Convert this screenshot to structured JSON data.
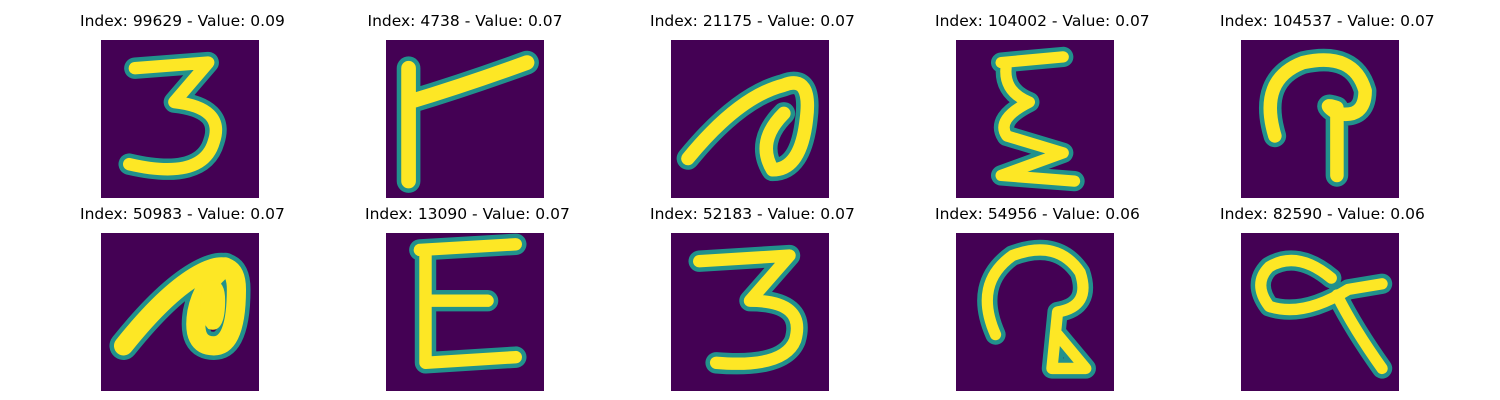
{
  "colors": {
    "background": "#440154",
    "glyph_core": "#fde725",
    "glyph_edge": "#21918c"
  },
  "grid": [
    {
      "title": "Index: 99629 - Value: 0.09",
      "glyph": "3"
    },
    {
      "title": "Index: 4738 - Value: 0.07",
      "glyph": "flag"
    },
    {
      "title": "Index: 21175 - Value: 0.07",
      "glyph": "hook"
    },
    {
      "title": "Index: 104002 - Value: 0.07",
      "glyph": "xi"
    },
    {
      "title": "Index: 104537 - Value: 0.07",
      "glyph": "loop"
    },
    {
      "title": "Index: 50983 - Value: 0.07",
      "glyph": "blob"
    },
    {
      "title": "Index: 13090 - Value: 0.07",
      "glyph": "E"
    },
    {
      "title": "Index: 52183 - Value: 0.07",
      "glyph": "3"
    },
    {
      "title": "Index: 54956 - Value: 0.06",
      "glyph": "loop2"
    },
    {
      "title": "Index: 82590 - Value: 0.06",
      "glyph": "alpha"
    }
  ]
}
